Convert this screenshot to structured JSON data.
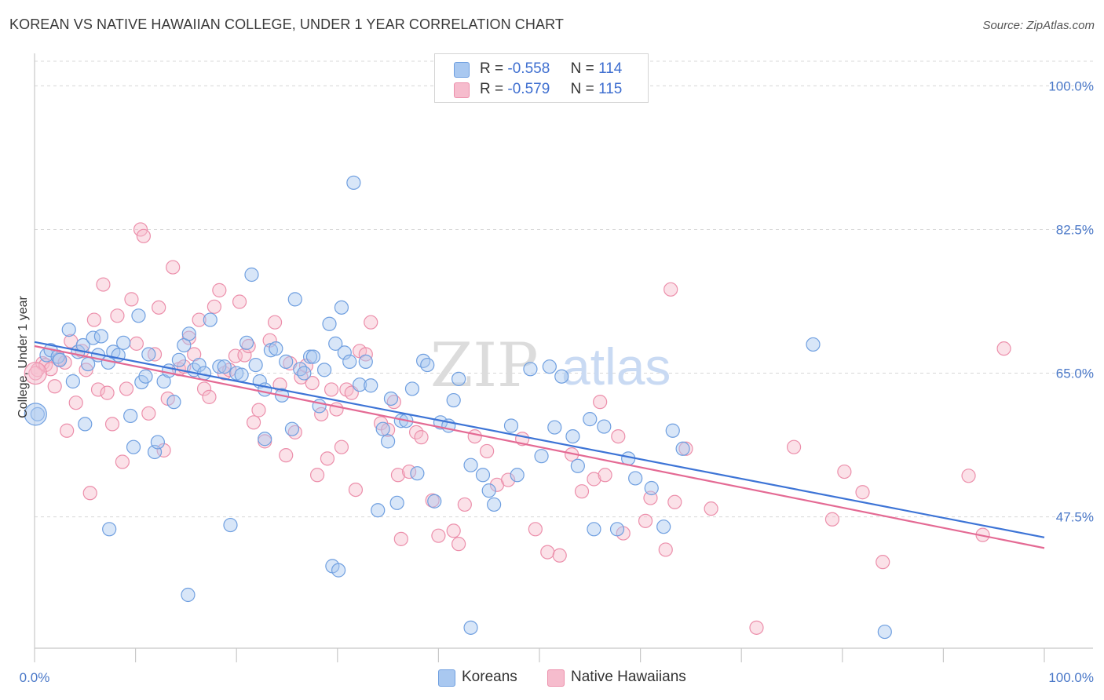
{
  "title": "KOREAN VS NATIVE HAWAIIAN COLLEGE, UNDER 1 YEAR CORRELATION CHART",
  "source": "Source: ZipAtlas.com",
  "watermark": {
    "zip": "ZIP",
    "atlas": "atlas"
  },
  "legend": {
    "koreans": {
      "r_label": "R =",
      "r_value": "-0.558",
      "n_label": "N =",
      "n_value": "114"
    },
    "hawaiians": {
      "r_label": "R =",
      "r_value": "-0.579",
      "n_label": "N =",
      "n_value": "115"
    }
  },
  "bottom_legend": {
    "koreans": "Koreans",
    "hawaiians": "Native Hawaiians"
  },
  "colors": {
    "koreans_fill": "#a9c8f0",
    "koreans_stroke": "#6f9fe0",
    "koreans_line": "#3d74d6",
    "hawaiians_fill": "#f6bccd",
    "hawaiians_stroke": "#ec8fab",
    "hawaiians_line": "#e46a94",
    "tick_label": "#4a78c8",
    "grid": "#d8d8d8"
  },
  "chart_data": {
    "type": "scatter",
    "title": "KOREAN VS NATIVE HAWAIIAN COLLEGE, UNDER 1 YEAR CORRELATION CHART",
    "xlabel": "",
    "ylabel": "College, Under 1 year",
    "xlim": [
      0,
      100
    ],
    "ylim": [
      31.5,
      103
    ],
    "x_tick_labels": [
      "0.0%",
      "100.0%"
    ],
    "y_ticks": [
      47.5,
      65.0,
      82.5,
      100.0
    ],
    "y_tick_labels": [
      "47.5%",
      "65.0%",
      "82.5%",
      "100.0%"
    ],
    "grid": true,
    "series": [
      {
        "name": "Koreans",
        "r": -0.558,
        "n": 114,
        "trend": {
          "x": [
            0,
            100
          ],
          "y": [
            68.8,
            45.0
          ]
        },
        "points": [
          [
            0.3,
            60.0
          ],
          [
            1.2,
            67.2
          ],
          [
            1.6,
            67.8
          ],
          [
            2.3,
            67.0
          ],
          [
            2.5,
            66.6
          ],
          [
            3.4,
            70.3
          ],
          [
            3.8,
            64.0
          ],
          [
            4.3,
            67.6
          ],
          [
            4.8,
            68.4
          ],
          [
            5.3,
            66.1
          ],
          [
            5.8,
            69.3
          ],
          [
            6.3,
            67.2
          ],
          [
            6.6,
            69.5
          ],
          [
            7.3,
            66.3
          ],
          [
            7.8,
            67.6
          ],
          [
            8.3,
            67.2
          ],
          [
            8.8,
            68.7
          ],
          [
            9.5,
            59.8
          ],
          [
            10.3,
            72.0
          ],
          [
            10.6,
            63.9
          ],
          [
            11.0,
            64.6
          ],
          [
            11.3,
            67.3
          ],
          [
            11.9,
            55.4
          ],
          [
            12.2,
            56.6
          ],
          [
            12.8,
            64.0
          ],
          [
            13.3,
            65.3
          ],
          [
            13.8,
            61.5
          ],
          [
            14.3,
            66.6
          ],
          [
            14.8,
            68.4
          ],
          [
            15.3,
            69.8
          ],
          [
            15.8,
            65.4
          ],
          [
            16.3,
            66.0
          ],
          [
            16.8,
            65.0
          ],
          [
            17.4,
            71.5
          ],
          [
            18.3,
            65.8
          ],
          [
            18.8,
            65.8
          ],
          [
            19.4,
            46.5
          ],
          [
            20.0,
            65.0
          ],
          [
            20.5,
            64.8
          ],
          [
            21.0,
            68.7
          ],
          [
            21.5,
            77.0
          ],
          [
            21.9,
            66.0
          ],
          [
            22.3,
            64.0
          ],
          [
            22.8,
            63.0
          ],
          [
            23.4,
            67.8
          ],
          [
            23.9,
            68.0
          ],
          [
            24.5,
            62.3
          ],
          [
            24.9,
            66.4
          ],
          [
            25.5,
            58.2
          ],
          [
            25.8,
            74.0
          ],
          [
            26.3,
            65.5
          ],
          [
            26.7,
            65.0
          ],
          [
            27.3,
            67.0
          ],
          [
            27.6,
            67.0
          ],
          [
            28.2,
            61.0
          ],
          [
            28.7,
            65.4
          ],
          [
            29.2,
            71.0
          ],
          [
            29.8,
            68.6
          ],
          [
            30.4,
            73.0
          ],
          [
            30.7,
            67.5
          ],
          [
            31.2,
            66.4
          ],
          [
            31.6,
            88.2
          ],
          [
            32.2,
            63.6
          ],
          [
            32.8,
            66.4
          ],
          [
            33.3,
            63.5
          ],
          [
            34.0,
            48.3
          ],
          [
            34.5,
            58.2
          ],
          [
            35.0,
            56.7
          ],
          [
            35.3,
            61.9
          ],
          [
            35.9,
            49.2
          ],
          [
            36.3,
            59.2
          ],
          [
            36.8,
            59.2
          ],
          [
            37.4,
            63.1
          ],
          [
            37.9,
            52.8
          ],
          [
            38.5,
            66.5
          ],
          [
            38.9,
            66.0
          ],
          [
            39.6,
            49.4
          ],
          [
            40.2,
            59.0
          ],
          [
            41.0,
            58.6
          ],
          [
            41.5,
            61.7
          ],
          [
            42.0,
            64.3
          ],
          [
            43.2,
            53.8
          ],
          [
            44.4,
            52.6
          ],
          [
            45.0,
            50.7
          ],
          [
            45.5,
            49.0
          ],
          [
            47.2,
            58.6
          ],
          [
            47.8,
            52.6
          ],
          [
            49.1,
            65.5
          ],
          [
            50.2,
            54.9
          ],
          [
            51.0,
            65.8
          ],
          [
            51.5,
            58.4
          ],
          [
            52.2,
            64.6
          ],
          [
            53.3,
            57.3
          ],
          [
            53.8,
            53.7
          ],
          [
            55.0,
            59.4
          ],
          [
            55.4,
            46.0
          ],
          [
            56.4,
            58.5
          ],
          [
            57.7,
            46.0
          ],
          [
            58.8,
            54.6
          ],
          [
            59.5,
            52.2
          ],
          [
            61.1,
            51.0
          ],
          [
            62.3,
            46.3
          ],
          [
            63.2,
            58.0
          ],
          [
            64.2,
            55.8
          ],
          [
            77.1,
            68.5
          ],
          [
            84.2,
            33.5
          ],
          [
            5.0,
            58.8
          ],
          [
            7.4,
            46.0
          ],
          [
            15.2,
            38.0
          ],
          [
            29.5,
            41.5
          ],
          [
            30.1,
            41.0
          ],
          [
            43.2,
            34.0
          ],
          [
            9.8,
            56.0
          ],
          [
            22.8,
            57.0
          ]
        ]
      },
      {
        "name": "Native Hawaiians",
        "r": -0.579,
        "n": 115,
        "trend": {
          "x": [
            0,
            100
          ],
          "y": [
            68.3,
            43.7
          ]
        },
        "points": [
          [
            0.3,
            65.4
          ],
          [
            0.8,
            66.2
          ],
          [
            1.1,
            66.0
          ],
          [
            1.6,
            65.5
          ],
          [
            2.0,
            63.4
          ],
          [
            2.4,
            66.7
          ],
          [
            3.2,
            58.0
          ],
          [
            3.6,
            68.9
          ],
          [
            4.1,
            61.4
          ],
          [
            4.7,
            67.7
          ],
          [
            5.1,
            65.4
          ],
          [
            5.5,
            50.4
          ],
          [
            5.9,
            71.5
          ],
          [
            6.3,
            63.0
          ],
          [
            6.8,
            75.8
          ],
          [
            7.2,
            62.6
          ],
          [
            7.7,
            58.8
          ],
          [
            8.2,
            72.0
          ],
          [
            8.7,
            54.2
          ],
          [
            9.1,
            63.1
          ],
          [
            9.6,
            74.0
          ],
          [
            10.1,
            68.6
          ],
          [
            10.5,
            82.5
          ],
          [
            10.8,
            81.7
          ],
          [
            11.3,
            60.1
          ],
          [
            11.9,
            67.3
          ],
          [
            12.3,
            73.0
          ],
          [
            12.8,
            55.6
          ],
          [
            13.2,
            61.9
          ],
          [
            13.7,
            77.9
          ],
          [
            14.3,
            65.5
          ],
          [
            14.8,
            65.8
          ],
          [
            15.3,
            69.3
          ],
          [
            15.8,
            67.3
          ],
          [
            16.3,
            71.5
          ],
          [
            16.8,
            63.1
          ],
          [
            17.3,
            62.1
          ],
          [
            17.8,
            73.1
          ],
          [
            18.3,
            75.1
          ],
          [
            18.8,
            65.0
          ],
          [
            19.3,
            65.4
          ],
          [
            19.9,
            67.1
          ],
          [
            20.3,
            73.7
          ],
          [
            20.8,
            67.2
          ],
          [
            21.2,
            68.3
          ],
          [
            21.7,
            59.0
          ],
          [
            22.2,
            60.5
          ],
          [
            22.8,
            56.7
          ],
          [
            23.3,
            69.0
          ],
          [
            23.8,
            71.2
          ],
          [
            24.3,
            63.6
          ],
          [
            24.9,
            55.0
          ],
          [
            25.3,
            66.2
          ],
          [
            25.8,
            57.8
          ],
          [
            26.4,
            64.5
          ],
          [
            26.9,
            65.9
          ],
          [
            27.5,
            63.8
          ],
          [
            28.0,
            52.6
          ],
          [
            28.4,
            60.0
          ],
          [
            29.0,
            54.6
          ],
          [
            29.4,
            63.0
          ],
          [
            29.9,
            60.6
          ],
          [
            30.4,
            56.0
          ],
          [
            30.9,
            63.0
          ],
          [
            31.4,
            62.6
          ],
          [
            31.8,
            50.8
          ],
          [
            32.2,
            67.7
          ],
          [
            32.8,
            67.3
          ],
          [
            33.3,
            71.2
          ],
          [
            34.3,
            58.9
          ],
          [
            35.0,
            58.1
          ],
          [
            35.6,
            61.5
          ],
          [
            36.0,
            52.6
          ],
          [
            36.3,
            44.8
          ],
          [
            37.1,
            53.0
          ],
          [
            37.8,
            57.8
          ],
          [
            38.3,
            57.2
          ],
          [
            39.4,
            49.5
          ],
          [
            40.0,
            45.2
          ],
          [
            41.5,
            45.8
          ],
          [
            42.0,
            44.2
          ],
          [
            42.6,
            49.0
          ],
          [
            43.6,
            57.3
          ],
          [
            44.8,
            55.5
          ],
          [
            45.8,
            51.4
          ],
          [
            46.9,
            52.0
          ],
          [
            48.3,
            57.0
          ],
          [
            49.6,
            46.0
          ],
          [
            50.8,
            43.2
          ],
          [
            52.0,
            42.8
          ],
          [
            53.2,
            55.1
          ],
          [
            54.2,
            50.6
          ],
          [
            55.4,
            52.1
          ],
          [
            56.5,
            52.6
          ],
          [
            57.8,
            57.3
          ],
          [
            58.3,
            45.5
          ],
          [
            60.5,
            47.0
          ],
          [
            61.0,
            49.8
          ],
          [
            62.5,
            43.5
          ],
          [
            63.4,
            49.3
          ],
          [
            64.5,
            55.8
          ],
          [
            67.0,
            48.5
          ],
          [
            71.5,
            34.0
          ],
          [
            75.2,
            56.0
          ],
          [
            79.0,
            47.2
          ],
          [
            80.2,
            53.0
          ],
          [
            82.0,
            50.5
          ],
          [
            84.0,
            42.0
          ],
          [
            92.5,
            52.5
          ],
          [
            93.9,
            45.3
          ],
          [
            96.0,
            68.0
          ],
          [
            63.0,
            75.2
          ],
          [
            0.1,
            65.0
          ],
          [
            3.0,
            66.3
          ],
          [
            56.0,
            61.5
          ]
        ]
      }
    ]
  }
}
